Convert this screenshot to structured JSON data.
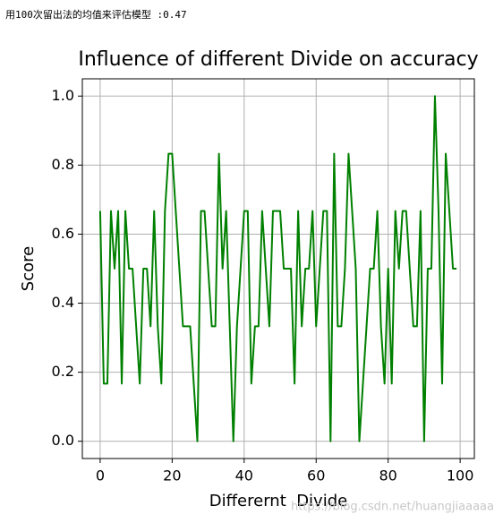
{
  "output_text": "用100次留出法的均值来评估模型 :0.47",
  "watermark": "https://blog.csdn.net/huangjiaaaaa",
  "chart_data": {
    "type": "line",
    "title": "Influence of different Divide on accuracy",
    "x_label": "Differernt  Divide",
    "y_label": "Score",
    "x": [
      0,
      1,
      2,
      3,
      4,
      5,
      6,
      7,
      8,
      9,
      10,
      11,
      12,
      13,
      14,
      15,
      16,
      17,
      18,
      19,
      20,
      21,
      22,
      23,
      24,
      25,
      26,
      27,
      28,
      29,
      30,
      31,
      32,
      33,
      34,
      35,
      36,
      37,
      38,
      39,
      40,
      41,
      42,
      43,
      44,
      45,
      46,
      47,
      48,
      49,
      50,
      51,
      52,
      53,
      54,
      55,
      56,
      57,
      58,
      59,
      60,
      61,
      62,
      63,
      64,
      65,
      66,
      67,
      68,
      69,
      70,
      71,
      72,
      73,
      74,
      75,
      76,
      77,
      78,
      79,
      80,
      81,
      82,
      83,
      84,
      85,
      86,
      87,
      88,
      89,
      90,
      91,
      92,
      93,
      94,
      95,
      96,
      97,
      98,
      99
    ],
    "series": [
      {
        "name": "Score",
        "color": "#008000",
        "values": [
          0.667,
          0.167,
          0.167,
          0.667,
          0.5,
          0.667,
          0.167,
          0.667,
          0.5,
          0.5,
          0.333,
          0.167,
          0.5,
          0.5,
          0.333,
          0.667,
          0.333,
          0.167,
          0.667,
          0.833,
          0.833,
          0.667,
          0.5,
          0.333,
          0.333,
          0.333,
          0.167,
          0.0,
          0.667,
          0.667,
          0.5,
          0.333,
          0.333,
          0.833,
          0.5,
          0.667,
          0.333,
          0.0,
          0.333,
          0.5,
          0.667,
          0.667,
          0.167,
          0.333,
          0.333,
          0.667,
          0.5,
          0.333,
          0.667,
          0.667,
          0.667,
          0.5,
          0.5,
          0.5,
          0.167,
          0.667,
          0.333,
          0.5,
          0.5,
          0.667,
          0.333,
          0.5,
          0.667,
          0.667,
          0.0,
          0.833,
          0.333,
          0.333,
          0.5,
          0.833,
          0.667,
          0.5,
          0.0,
          0.167,
          0.333,
          0.5,
          0.5,
          0.667,
          0.333,
          0.167,
          0.5,
          0.167,
          0.667,
          0.5,
          0.667,
          0.667,
          0.5,
          0.333,
          0.333,
          0.667,
          0.0,
          0.5,
          0.5,
          1.0,
          0.667,
          0.167,
          0.833,
          0.667,
          0.5,
          0.5
        ]
      }
    ],
    "xlim": [
      -4.95,
      103.95
    ],
    "ylim": [
      -0.05,
      1.05
    ],
    "xticks": [
      0,
      20,
      40,
      60,
      80,
      100
    ],
    "yticks": [
      {
        "value": 0,
        "label": "0.0"
      },
      {
        "value": 0.2,
        "label": "0.2"
      },
      {
        "value": 0.4,
        "label": "0.4"
      },
      {
        "value": 0.6,
        "label": "0.6"
      },
      {
        "value": 0.8,
        "label": "0.8"
      },
      {
        "value": 1,
        "label": "1.0"
      }
    ],
    "grid": true
  }
}
